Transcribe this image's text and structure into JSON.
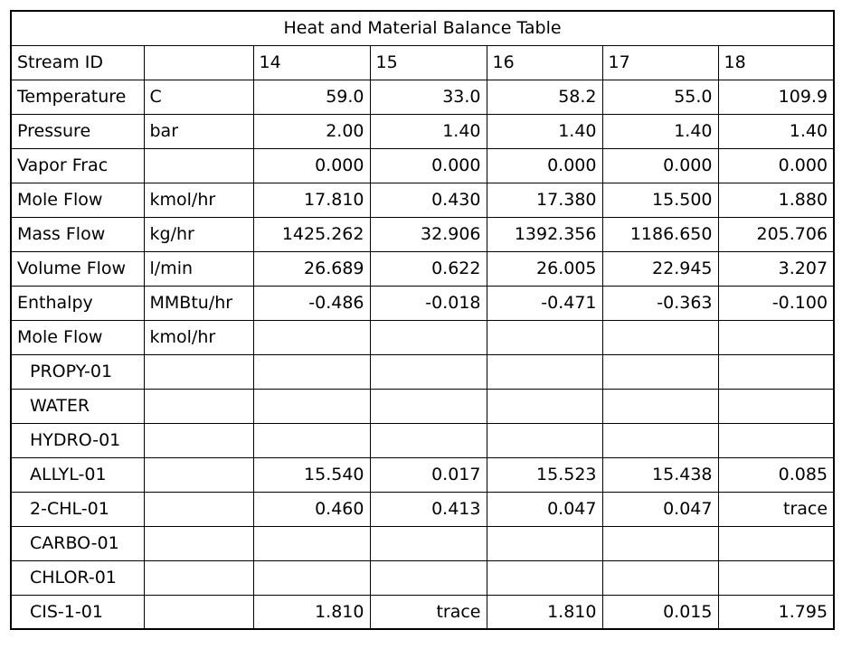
{
  "table": {
    "title": "Heat and Material Balance Table",
    "header": {
      "label": "Stream ID",
      "unit": "",
      "streams": [
        "14",
        "15",
        "16",
        "17",
        "18"
      ]
    },
    "rows": [
      {
        "label": "Temperature",
        "unit": "C",
        "values": [
          "59.0",
          "33.0",
          "58.2",
          "55.0",
          "109.9"
        ]
      },
      {
        "label": "Pressure",
        "unit": "bar",
        "values": [
          "2.00",
          "1.40",
          "1.40",
          "1.40",
          "1.40"
        ]
      },
      {
        "label": "Vapor Frac",
        "unit": "",
        "values": [
          "0.000",
          "0.000",
          "0.000",
          "0.000",
          "0.000"
        ]
      },
      {
        "label": "Mole Flow",
        "unit": "kmol/hr",
        "values": [
          "17.810",
          "0.430",
          "17.380",
          "15.500",
          "1.880"
        ]
      },
      {
        "label": "Mass Flow",
        "unit": "kg/hr",
        "values": [
          "1425.262",
          "32.906",
          "1392.356",
          "1186.650",
          "205.706"
        ]
      },
      {
        "label": "Volume Flow",
        "unit": "l/min",
        "values": [
          "26.689",
          "0.622",
          "26.005",
          "22.945",
          "3.207"
        ]
      },
      {
        "label": "Enthalpy",
        "unit": "MMBtu/hr",
        "values": [
          "-0.486",
          "-0.018",
          "-0.471",
          "-0.363",
          "-0.100"
        ]
      },
      {
        "label": "Mole Flow",
        "unit": "kmol/hr",
        "values": [
          "",
          "",
          "",
          "",
          ""
        ]
      },
      {
        "label": "PROPY-01",
        "unit": "",
        "values": [
          "",
          "",
          "",
          "",
          ""
        ],
        "component": true
      },
      {
        "label": "WATER",
        "unit": "",
        "values": [
          "",
          "",
          "",
          "",
          ""
        ],
        "component": true
      },
      {
        "label": "HYDRO-01",
        "unit": "",
        "values": [
          "",
          "",
          "",
          "",
          ""
        ],
        "component": true
      },
      {
        "label": "ALLYL-01",
        "unit": "",
        "values": [
          "15.540",
          "0.017",
          "15.523",
          "15.438",
          "0.085"
        ],
        "component": true
      },
      {
        "label": "2-CHL-01",
        "unit": "",
        "values": [
          "0.460",
          "0.413",
          "0.047",
          "0.047",
          "trace"
        ],
        "component": true
      },
      {
        "label": "CARBO-01",
        "unit": "",
        "values": [
          "",
          "",
          "",
          "",
          ""
        ],
        "component": true
      },
      {
        "label": "CHLOR-01",
        "unit": "",
        "values": [
          "",
          "",
          "",
          "",
          ""
        ],
        "component": true
      },
      {
        "label": "CIS-1-01",
        "unit": "",
        "values": [
          "1.810",
          "trace",
          "1.810",
          "0.015",
          "1.795"
        ],
        "component": true
      }
    ]
  }
}
